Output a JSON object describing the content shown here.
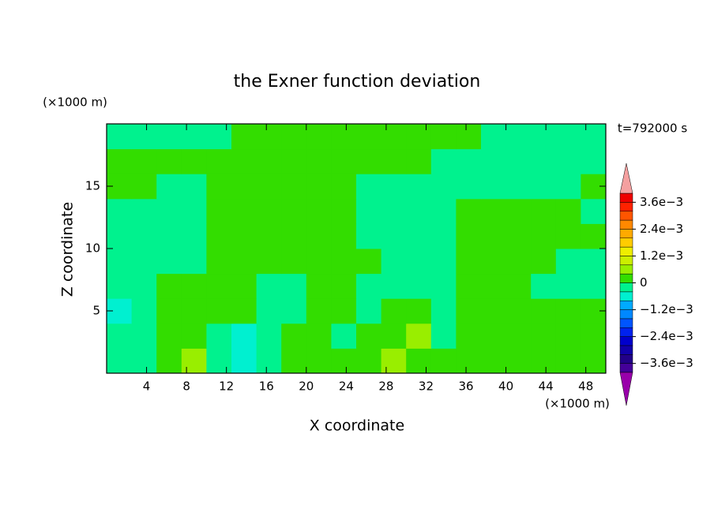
{
  "chart_data": {
    "type": "contour",
    "title": "the Exner function deviation",
    "x_label": "X coordinate",
    "y_label": "Z coordinate",
    "x_unit": "(×1000 m)",
    "y_unit": "(×1000 m)",
    "time_label": "t=792000 s",
    "xlim": [
      0,
      50
    ],
    "ylim": [
      0,
      20
    ],
    "xticks": [
      4,
      8,
      12,
      16,
      20,
      24,
      28,
      32,
      36,
      40,
      44,
      48
    ],
    "yticks": [
      5,
      10,
      15
    ],
    "x": [
      1.25,
      3.75,
      6.25,
      8.75,
      11.25,
      13.75,
      16.25,
      18.75,
      21.25,
      23.75,
      26.25,
      28.75,
      31.25,
      33.75,
      36.25,
      38.75,
      41.25,
      43.75,
      46.25,
      48.75
    ],
    "y": [
      1,
      3,
      5,
      7,
      9,
      11,
      13,
      15,
      17,
      19
    ],
    "z": [
      [
        -0.0002,
        -0.0002,
        0.0002,
        0.0006,
        -0.0002,
        -0.0006,
        -0.0002,
        0.0002,
        0.0002,
        0.0002,
        0.0002,
        0.0006,
        0.0002,
        0.0002,
        0.0002,
        0.0002,
        0.0002,
        0.0002,
        0.0002,
        0.0002
      ],
      [
        -0.0002,
        -0.0002,
        0.0002,
        0.0002,
        -0.0002,
        -0.0006,
        -0.0002,
        0.0002,
        0.0002,
        -0.0002,
        0.0002,
        0.0002,
        0.0006,
        -0.0002,
        0.0002,
        0.0002,
        0.0002,
        0.0002,
        0.0002,
        0.0002
      ],
      [
        -0.0006,
        -0.0002,
        0.0002,
        0.0002,
        0.0002,
        0.0002,
        -0.0002,
        -0.0002,
        0.0002,
        0.0002,
        -0.0002,
        0.0002,
        0.0002,
        -0.0002,
        0.0002,
        0.0002,
        0.0002,
        0.0002,
        0.0002,
        0.0002
      ],
      [
        -0.0002,
        -0.0002,
        0.0002,
        0.0002,
        0.0002,
        0.0002,
        -0.0002,
        -0.0002,
        0.0002,
        0.0002,
        -0.0002,
        -0.0002,
        -0.0002,
        -0.0002,
        0.0002,
        0.0002,
        0.0002,
        -0.0002,
        -0.0002,
        -0.0002
      ],
      [
        -0.0002,
        -0.0002,
        -0.0002,
        -0.0002,
        0.0002,
        0.0002,
        0.0002,
        0.0002,
        0.0002,
        0.0002,
        0.0002,
        -0.0002,
        -0.0002,
        -0.0002,
        0.0002,
        0.0002,
        0.0002,
        0.0002,
        -0.0002,
        -0.0002
      ],
      [
        -0.0002,
        -0.0002,
        -0.0002,
        -0.0002,
        0.0002,
        0.0002,
        0.0002,
        0.0002,
        0.0002,
        0.0002,
        -0.0002,
        -0.0002,
        -0.0002,
        -0.0002,
        0.0002,
        0.0002,
        0.0002,
        0.0002,
        0.0002,
        0.0002
      ],
      [
        -0.0002,
        -0.0002,
        -0.0002,
        -0.0002,
        0.0002,
        0.0002,
        0.0002,
        0.0002,
        0.0002,
        0.0002,
        -0.0002,
        -0.0002,
        -0.0002,
        -0.0002,
        0.0002,
        0.0002,
        0.0002,
        0.0002,
        0.0002,
        -0.0002
      ],
      [
        0.0002,
        0.0002,
        -0.0002,
        -0.0002,
        0.0002,
        0.0002,
        0.0002,
        0.0002,
        0.0002,
        0.0002,
        -0.0002,
        -0.0002,
        -0.0002,
        -0.0002,
        -0.0002,
        -0.0002,
        -0.0002,
        -0.0002,
        -0.0002,
        0.0002
      ],
      [
        0.0002,
        0.0002,
        0.0002,
        0.0002,
        0.0002,
        0.0002,
        0.0002,
        0.0002,
        0.0002,
        0.0002,
        0.0002,
        0.0002,
        0.0002,
        -0.0002,
        -0.0002,
        -0.0002,
        -0.0002,
        -0.0002,
        -0.0002,
        -0.0002
      ],
      [
        -0.0002,
        -0.0002,
        -0.0002,
        -0.0002,
        -0.0002,
        0.0002,
        0.0002,
        0.0002,
        0.0002,
        0.0002,
        0.0002,
        0.0002,
        0.0002,
        0.0002,
        0.0002,
        -0.0002,
        -0.0002,
        -0.0002,
        -0.0002,
        -0.0002
      ]
    ],
    "levels": [
      -0.004,
      -0.0036,
      -0.0032,
      -0.0028,
      -0.0024,
      -0.002,
      -0.0016,
      -0.0012,
      -0.0008,
      -0.0004,
      0,
      0.0004,
      0.0008,
      0.0012,
      0.0016,
      0.002,
      0.0024,
      0.0028,
      0.0032,
      0.0036,
      0.004
    ],
    "colors": [
      "#440099",
      "#220088",
      "#1100aa",
      "#0000cc",
      "#0022ee",
      "#0055ff",
      "#0088ff",
      "#00aaff",
      "#00f0d0",
      "#00f28e",
      "#33dd00",
      "#99ee00",
      "#ccee00",
      "#eeee00",
      "#ffcc00",
      "#ffaa00",
      "#ff8800",
      "#ff5500",
      "#ff2200",
      "#ee0000"
    ],
    "under_color": "#9900aa",
    "over_color": "#f4a0a0",
    "colorbar_ticks": [
      {
        "value": -0.0036,
        "label": "−3.6e−3"
      },
      {
        "value": -0.0024,
        "label": "−2.4e−3"
      },
      {
        "value": -0.0012,
        "label": "−1.2e−3"
      },
      0,
      {
        "value": 0.0012,
        "label": "1.2e−3"
      },
      {
        "value": 0.0024,
        "label": "2.4e−3"
      },
      {
        "value": 0.0036,
        "label": "3.6e−3"
      }
    ]
  }
}
